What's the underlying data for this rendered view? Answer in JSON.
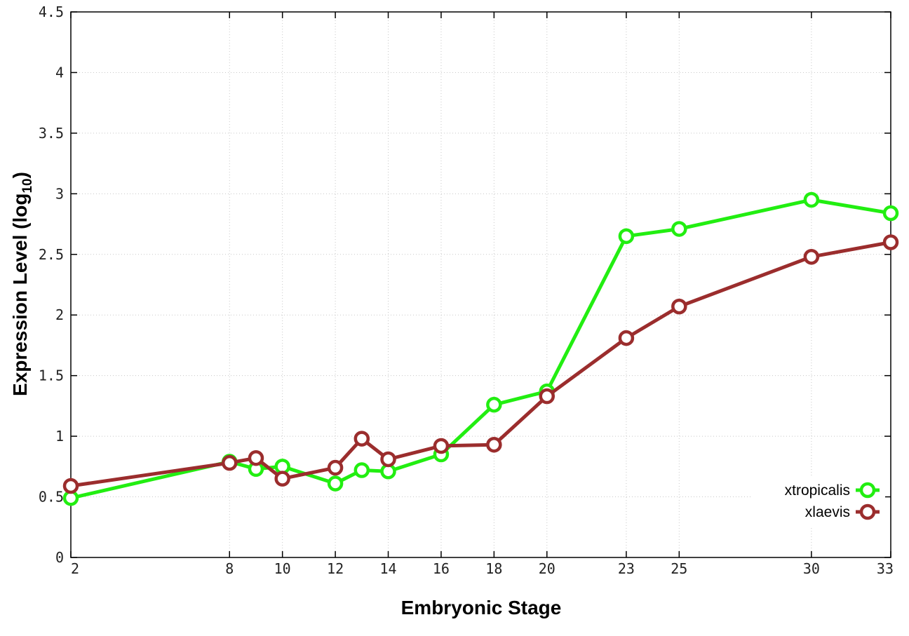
{
  "chart_data": {
    "type": "line",
    "xlabel": "Embryonic Stage",
    "ylabel_main": "Expression Level (log",
    "ylabel_sub": "10",
    "ylabel_close": ")",
    "xlim": [
      2,
      33
    ],
    "ylim": [
      0,
      4.5
    ],
    "x_ticks": [
      2,
      8,
      10,
      12,
      14,
      16,
      18,
      20,
      23,
      25,
      30,
      33
    ],
    "y_ticks": [
      0,
      0.5,
      1,
      1.5,
      2,
      2.5,
      3,
      3.5,
      4,
      4.5
    ],
    "y_tick_labels": [
      "0",
      "0.5",
      "1",
      "1.5",
      "2",
      "2.5",
      "3",
      "3.5",
      "4",
      "4.5"
    ],
    "grid": true,
    "legend_position": "bottom-right",
    "series": [
      {
        "name": "xtropicalis",
        "color": "#22ee11",
        "x": [
          2,
          8,
          9,
          10,
          12,
          13,
          14,
          16,
          18,
          20,
          23,
          25,
          30,
          33
        ],
        "values": [
          0.49,
          0.79,
          0.73,
          0.75,
          0.61,
          0.72,
          0.71,
          0.85,
          1.26,
          1.37,
          2.65,
          2.71,
          2.95,
          2.84
        ]
      },
      {
        "name": "xlaevis",
        "color": "#9b2d2d",
        "x": [
          2,
          8,
          9,
          10,
          12,
          13,
          14,
          16,
          18,
          20,
          23,
          25,
          30,
          33
        ],
        "values": [
          0.59,
          0.78,
          0.82,
          0.65,
          0.74,
          0.98,
          0.81,
          0.92,
          0.93,
          1.33,
          1.81,
          2.07,
          2.48,
          2.6
        ]
      }
    ]
  }
}
